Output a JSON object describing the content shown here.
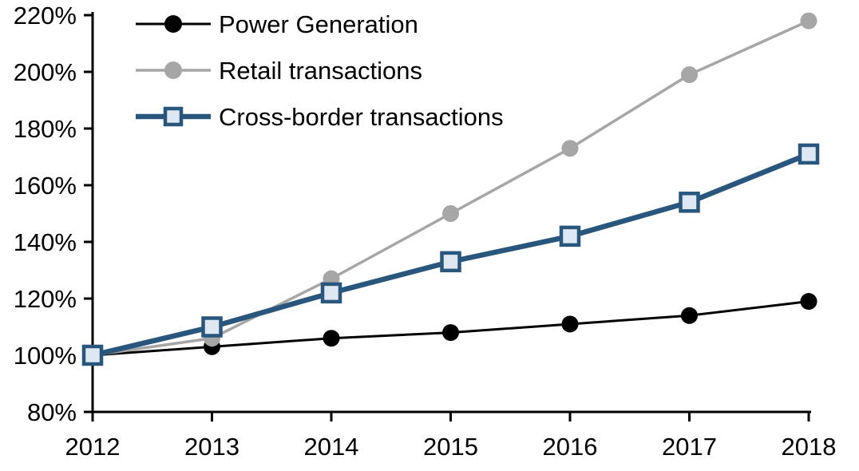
{
  "chart_data": {
    "type": "line",
    "title": "",
    "xlabel": "",
    "ylabel": "",
    "x": [
      "2012",
      "2013",
      "2014",
      "2015",
      "2016",
      "2017",
      "2018"
    ],
    "series": [
      {
        "name": "Power Generation",
        "values": [
          100,
          103,
          106,
          108,
          111,
          114,
          119
        ],
        "color": "#000000",
        "marker": "circle",
        "marker_fill": "#000000",
        "line_width": 3
      },
      {
        "name": "Retail transactions",
        "values": [
          100,
          106,
          127,
          150,
          173,
          199,
          218
        ],
        "color": "#A6A6A6",
        "marker": "circle",
        "marker_fill": "#A6A6A6",
        "line_width": 3.5
      },
      {
        "name": "Cross-border transactions",
        "values": [
          100,
          110,
          122,
          133,
          142,
          154,
          171
        ],
        "color": "#29567D",
        "marker": "square",
        "marker_fill": "#DEE8F3",
        "line_width": 6.5
      }
    ],
    "ylim": [
      80,
      220
    ],
    "ytick_step": 20,
    "ytick_labels": [
      "220%",
      "200%",
      "180%",
      "160%",
      "140%",
      "120%",
      "100%",
      "80%"
    ],
    "unit_suffix": "%",
    "grid": false,
    "legend_position": "top-left",
    "axis_color": "#000000",
    "background_color": "#FFFFFF"
  }
}
